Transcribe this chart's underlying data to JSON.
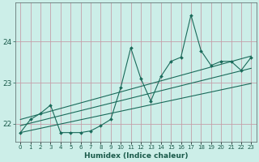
{
  "xlabel": "Humidex (Indice chaleur)",
  "bg_color": "#cceee8",
  "grid_color": "#c4a0aa",
  "line_color": "#1a6a5a",
  "x_data": [
    0,
    1,
    2,
    3,
    4,
    5,
    6,
    7,
    8,
    9,
    10,
    11,
    12,
    13,
    14,
    15,
    16,
    17,
    18,
    19,
    20,
    21,
    22,
    23
  ],
  "y_line": [
    21.78,
    22.1,
    22.25,
    22.45,
    21.78,
    21.78,
    21.78,
    21.82,
    21.95,
    22.1,
    22.88,
    23.85,
    23.1,
    22.55,
    23.15,
    23.52,
    23.62,
    24.65,
    23.78,
    23.42,
    23.52,
    23.52,
    23.3,
    23.62
  ],
  "reg_upper_start": 22.1,
  "reg_upper_end": 23.65,
  "reg_mid_start": 21.95,
  "reg_mid_end": 23.35,
  "reg_lower_start": 21.78,
  "reg_lower_end": 22.98,
  "yticks": [
    22,
    23,
    24
  ],
  "ylim": [
    21.55,
    24.95
  ],
  "xlim": [
    -0.5,
    23.5
  ],
  "xtick_fontsize": 5.0,
  "ytick_fontsize": 6.5,
  "xlabel_fontsize": 6.5
}
